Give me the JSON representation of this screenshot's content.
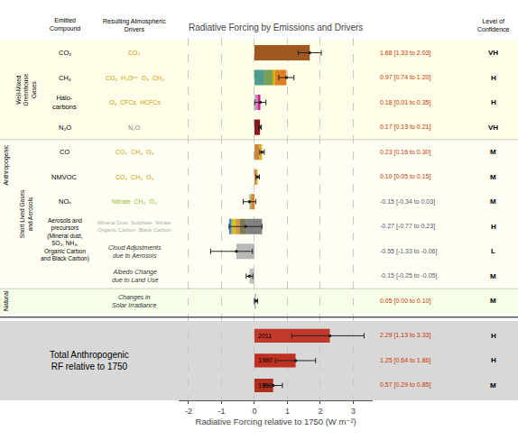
{
  "chart_data": {
    "type": "bar",
    "orientation": "horizontal",
    "title": "Radiative Forcing by Emissions and Drivers",
    "xlabel": "Radiative Forcing relative to 1750 (W m⁻²)",
    "xlim": [
      -2.3,
      3.6
    ],
    "xticks": [
      -2,
      -1,
      0,
      1,
      2,
      3
    ],
    "grid": true,
    "tick_labels": "x",
    "headers": {
      "compound": "Emitted\nCompound",
      "driver": "Resulting Atmospheric\nDrivers",
      "confidence": "Level of\nConfidence"
    },
    "groups": [
      {
        "label": "Anthropogenic",
        "sections": [
          {
            "label": "Well-Mixed\nGreenhouse\nGases",
            "color": "#fffde7",
            "rows": [
              {
                "compound": "CO₂",
                "driver": "CO₂",
                "driver_color": "#c8a000",
                "segments": [
                  {
                    "base": 0,
                    "value": 1.68,
                    "color": "#a05820"
                  }
                ],
                "error": {
                  "center": 1.68,
                  "minus": 0.35,
                  "plus": 0.35
                },
                "value_text": "1.68 [1.33 to 2.03]",
                "value_color": "#cc3300",
                "confidence": "VH"
              },
              {
                "compound": "CH₄",
                "driver": "CO₂  H₂Oˢᵗʳ  O₃  CH₄",
                "driver_color": "#c8a000",
                "segments": [
                  {
                    "base": 0.0,
                    "value": 0.3,
                    "color": "#4e9a8c"
                  },
                  {
                    "base": 0.3,
                    "value": 0.25,
                    "color": "#7b9e57"
                  },
                  {
                    "base": 0.55,
                    "value": 0.07,
                    "color": "#c8b400"
                  },
                  {
                    "base": 0.62,
                    "value": 0.35,
                    "color": "#e08020"
                  }
                ],
                "error": {
                  "center": 0.97,
                  "minus": 0.23,
                  "plus": 0.23
                },
                "value_text": "0.97 [0.74 to 1.20]",
                "value_color": "#cc3300",
                "confidence": "H"
              },
              {
                "compound": "Halo-\ncarbons",
                "driver": "O₃  CFCs  HCFCs",
                "driver_color": "#c8a000",
                "segments": [
                  {
                    "base": 0.0,
                    "value": 0.02,
                    "color": "#8fbc8f"
                  },
                  {
                    "base": 0.02,
                    "value": 0.08,
                    "color": "#cc88cc"
                  },
                  {
                    "base": 0.1,
                    "value": 0.08,
                    "color": "#cc2288"
                  }
                ],
                "error": {
                  "center": 0.18,
                  "minus": 0.17,
                  "plus": 0.17
                },
                "value_text": "0.18 [0.01 to 0.35]",
                "value_color": "#cc3300",
                "confidence": "H"
              },
              {
                "compound": "N₂O",
                "driver": "N₂O",
                "driver_color": "#808080",
                "segments": [
                  {
                    "base": 0,
                    "value": 0.17,
                    "color": "#8b1a1a"
                  }
                ],
                "error": {
                  "center": 0.17,
                  "minus": 0.04,
                  "plus": 0.04
                },
                "value_text": "0.17 [0.13 to 0.21]",
                "value_color": "#cc3300",
                "confidence": "VH"
              }
            ]
          },
          {
            "label": "Short Lived Gases\nand Aerosols",
            "color": "#fffff4",
            "rows": [
              {
                "compound": "CO",
                "driver": "CO₂  CH₄  O₃",
                "driver_color": "#c8a000",
                "segments": [
                  {
                    "base": 0.0,
                    "value": 0.15,
                    "color": "#cd853f"
                  },
                  {
                    "base": 0.15,
                    "value": 0.05,
                    "color": "#daa520"
                  },
                  {
                    "base": 0.2,
                    "value": 0.03,
                    "color": "#c8b400"
                  }
                ],
                "error": {
                  "center": 0.23,
                  "minus": 0.07,
                  "plus": 0.07
                },
                "value_text": "0.23 [0.16 to 0.30]",
                "value_color": "#cc3300",
                "confidence": "M"
              },
              {
                "compound": "NMVOC",
                "driver": "CO₂  CH₄  O₃",
                "driver_color": "#c8a000",
                "segments": [
                  {
                    "base": 0.0,
                    "value": 0.07,
                    "color": "#cd853f"
                  },
                  {
                    "base": 0.07,
                    "value": 0.02,
                    "color": "#daa520"
                  },
                  {
                    "base": 0.09,
                    "value": 0.01,
                    "color": "#c8b400"
                  }
                ],
                "error": {
                  "center": 0.1,
                  "minus": 0.05,
                  "plus": 0.05
                },
                "value_text": "0.10 [0.05 to 0.15]",
                "value_color": "#cc3300",
                "confidence": "M"
              },
              {
                "compound": "NOₓ",
                "driver": "Nitrate  CH₄  O₃",
                "driver_color": "#90c030",
                "segments": [
                  {
                    "base": -0.15,
                    "value": 0.05,
                    "color": "#8fbc8f"
                  },
                  {
                    "base": -0.1,
                    "value": 0.1,
                    "color": "#e08020"
                  }
                ],
                "error": {
                  "center": -0.15,
                  "minus": 0.19,
                  "plus": 0.19
                },
                "value_text": "-0.15 [-0.34 to 0.03]",
                "value_color": "#555566",
                "confidence": "M"
              },
              {
                "compound": "Aerosols and\nprecursors\n(Mineral dust,\nSO₂, NH₃,\nOrganic Carbon\nand Black Carbon)",
                "driver": "Mineral Dust  Sulphate  Nitrate\nOrganic Carbon  Black Carbon",
                "driver_color": "#aaaaaa",
                "segments": [
                  {
                    "base": -0.77,
                    "value": 0.08,
                    "color": "#5080c0"
                  },
                  {
                    "base": -0.69,
                    "value": 0.12,
                    "color": "#c8c820"
                  },
                  {
                    "base": -0.57,
                    "value": 0.12,
                    "color": "#e09040"
                  },
                  {
                    "base": -0.45,
                    "value": 0.18,
                    "color": "#7b7b50"
                  },
                  {
                    "base": -0.27,
                    "value": 0.5,
                    "color": "#808080"
                  }
                ],
                "error": {
                  "center": -0.27,
                  "minus": 0.5,
                  "plus": 0.5
                },
                "value_text": "-0.27 [-0.77 to 0.23]",
                "value_color": "#555566",
                "confidence": "H"
              },
              {
                "driver": "Cloud Adjustments\ndue to Aerosols",
                "driver_color": "#333333",
                "segments": [
                  {
                    "base": -0.55,
                    "value": 0.55,
                    "color": "#b8b8b8"
                  }
                ],
                "error": {
                  "center": -0.55,
                  "minus": 0.78,
                  "plus": 0.49
                },
                "value_text": "-0.55 [-1.33 to -0.06]",
                "value_color": "#555566",
                "confidence": "L"
              },
              {
                "driver": "Albedo Change\ndue to Land Use",
                "driver_color": "#333333",
                "segments": [
                  {
                    "base": -0.15,
                    "value": 0.15,
                    "color": "#c0c0c0"
                  }
                ],
                "error": {
                  "center": -0.15,
                  "minus": 0.1,
                  "plus": 0.1
                },
                "value_text": "-0.15 [-0.25 to -0.05]",
                "value_color": "#555566",
                "confidence": "M"
              }
            ]
          }
        ]
      },
      {
        "label": "Natural",
        "sections": [
          {
            "color": "#f5ffe8",
            "rows": [
              {
                "driver": "Changes in\nSolar Irradiance",
                "driver_color": "#333333",
                "segments": [
                  {
                    "base": 0,
                    "value": 0.05,
                    "color": "#c0c0c0"
                  }
                ],
                "error": {
                  "center": 0.05,
                  "minus": 0.05,
                  "plus": 0.05
                },
                "value_text": "0.05 [0.00 to 0.10]",
                "value_color": "#cc3300",
                "confidence": "M"
              }
            ]
          }
        ]
      }
    ],
    "totals": {
      "label": "Total Anthropogenic\nRF relative to 1750",
      "color": "#d8d8d8",
      "value_color": "#cc3300",
      "items": [
        {
          "year": "2011",
          "value": 2.29,
          "error": {
            "minus": 1.16,
            "plus": 1.04
          },
          "color": "#c0392b",
          "confidence": "H",
          "value_text": "2.29 [1.13 to 3.33]"
        },
        {
          "year": "1980",
          "value": 1.25,
          "error": {
            "minus": 0.61,
            "plus": 0.61
          },
          "color": "#c03020",
          "confidence": "H",
          "value_text": "1.25 [0.64 to 1.86]"
        },
        {
          "year": "1950",
          "value": 0.57,
          "error": {
            "minus": 0.28,
            "plus": 0.28
          },
          "color": "#b03020",
          "confidence": "M",
          "value_text": "0.57 [0.29 to 0.85]"
        }
      ]
    }
  }
}
